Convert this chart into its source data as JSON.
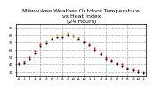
{
  "title": "Milwaukee Weather Outdoor Temperature\nvs Heat Index\n(24 Hours)",
  "title_fontsize": 4.5,
  "background_color": "#ffffff",
  "plot_bg_color": "#ffffff",
  "x_labels": [
    "12",
    "1",
    "2",
    "3",
    "4",
    "5",
    "6",
    "7",
    "8",
    "9",
    "10",
    "11",
    "12",
    "1",
    "2",
    "3",
    "4",
    "5",
    "6",
    "7",
    "8",
    "9",
    "10",
    "11"
  ],
  "x_label_fontsize": 3.0,
  "y_label_fontsize": 3.0,
  "ylim": [
    25,
    95
  ],
  "y_ticks": [
    30,
    40,
    50,
    60,
    70,
    80,
    90
  ],
  "hours": [
    0,
    1,
    2,
    3,
    4,
    5,
    6,
    7,
    8,
    9,
    10,
    11,
    12,
    13,
    14,
    15,
    16,
    17,
    18,
    19,
    20,
    21,
    22,
    23
  ],
  "temp": [
    42,
    44,
    50,
    58,
    68,
    72,
    78,
    80,
    80,
    82,
    80,
    76,
    72,
    68,
    62,
    56,
    50,
    46,
    42,
    40,
    36,
    34,
    32,
    30
  ],
  "heat_index": [
    40,
    42,
    48,
    55,
    65,
    69,
    74,
    76,
    76,
    80,
    78,
    74,
    70,
    66,
    60,
    54,
    48,
    44,
    40,
    38,
    34,
    32,
    30,
    28
  ],
  "high_temp_threshold": 70,
  "temp_color_low": "#ff0000",
  "temp_color_high": "#ff8c00",
  "heat_color": "#000000",
  "marker_size": 1.5,
  "grid_color": "#aaaaaa",
  "grid_linestyle": "--",
  "grid_linewidth": 0.5,
  "vgrid_positions": [
    4,
    8,
    12,
    16,
    20
  ],
  "border_color": "#000000"
}
